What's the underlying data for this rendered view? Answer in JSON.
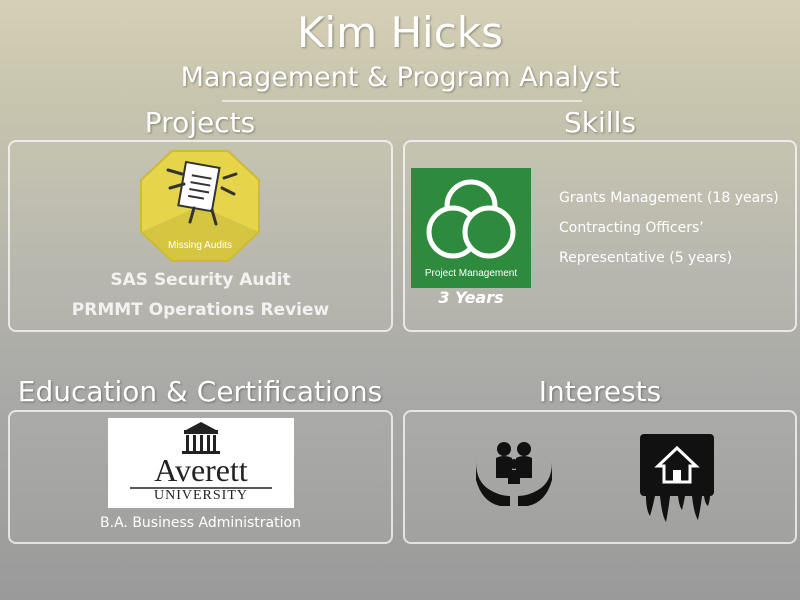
{
  "header": {
    "name": "Kim Hicks",
    "role": "Management & Program Analyst"
  },
  "projects": {
    "title": "Projects",
    "badge_label": "Missing Audits",
    "items": [
      "SAS Security Audit",
      "PRMMT Operations Review"
    ]
  },
  "skills": {
    "title": "Skills",
    "badge_label": "Project Management",
    "badge_years": "3 Years",
    "items": [
      "Grants Management (18 years)",
      "Contracting Officers’",
      "Representative (5 years)"
    ]
  },
  "education": {
    "title": "Education & Certifications",
    "logo_word_1": "Averett",
    "logo_word_2": "UNIVERSITY",
    "degree": "B.A. Business Administration"
  },
  "interests": {
    "title": "Interests",
    "icons": [
      "family-care-icon",
      "home-paint-icon"
    ]
  },
  "colors": {
    "badge_yellow": "#e9d84d",
    "skills_green": "#2e8b3e"
  }
}
